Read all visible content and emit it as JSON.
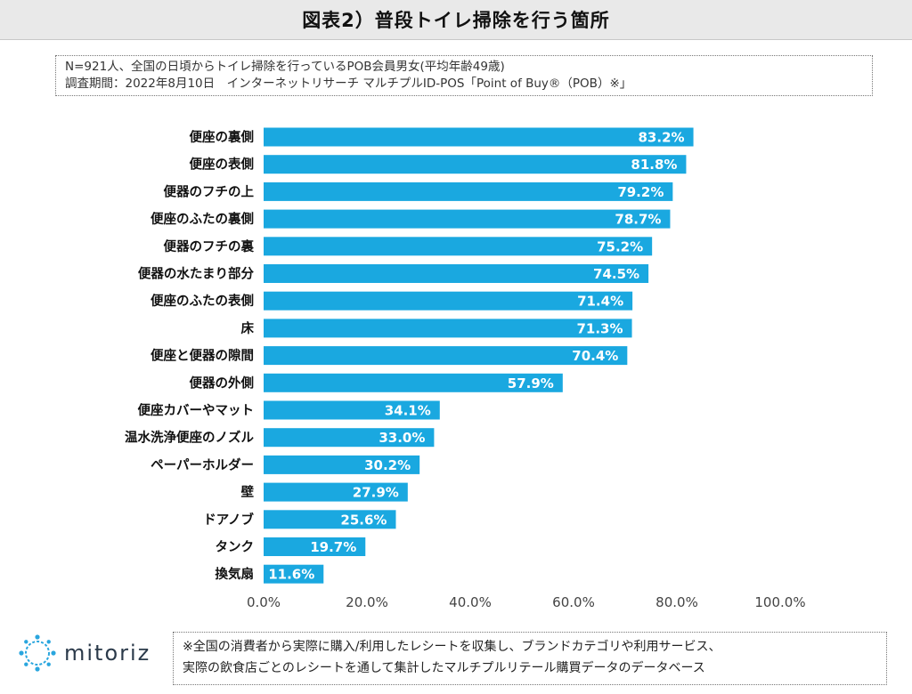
{
  "header": {
    "title": "図表2）普段トイレ掃除を行う箇所"
  },
  "notes": {
    "line1": "N=921人、全国の日頃からトイレ掃除を行っているPOB会員男女(平均年齢49歳)",
    "line2": "調査期間：2022年8月10日　インターネットリサーチ マルチプルID-POS「Point of Buy®（POB）※」"
  },
  "chart_data": {
    "type": "bar",
    "orientation": "horizontal",
    "categories": [
      "便座の裏側",
      "便座の表側",
      "便器のフチの上",
      "便座のふたの裏側",
      "便器のフチの裏",
      "便器の水たまり部分",
      "便座のふたの表側",
      "床",
      "便座と便器の隙間",
      "便器の外側",
      "便座カバーやマット",
      "温水洗浄便座のノズル",
      "ペーパーホルダー",
      "壁",
      "ドアノブ",
      "タンク",
      "換気扇"
    ],
    "values": [
      83.2,
      81.8,
      79.2,
      78.7,
      75.2,
      74.5,
      71.4,
      71.3,
      70.4,
      57.9,
      34.1,
      33.0,
      30.2,
      27.9,
      25.6,
      19.7,
      11.6
    ],
    "data_labels": [
      "83.2%",
      "81.8%",
      "79.2%",
      "78.7%",
      "75.2%",
      "74.5%",
      "71.4%",
      "71.3%",
      "70.4%",
      "57.9%",
      "34.1%",
      "33.0%",
      "30.2%",
      "27.9%",
      "25.6%",
      "19.7%",
      "11.6%"
    ],
    "x_ticks": [
      "0.0%",
      "20.0%",
      "40.0%",
      "60.0%",
      "80.0%",
      "100.0%"
    ],
    "xlim": [
      0,
      100
    ],
    "grid": false,
    "bar_color": "#1aa8e0",
    "label_color": "#ffffff"
  },
  "footer": {
    "logo_text": "mitoriz",
    "note_line1": "※全国の消費者から実際に購入/利用したレシートを収集し、ブランドカテゴリや利用サービス、",
    "note_line2": "実際の飲食店ごとのレシートを通して集計したマルチプルリテール購買データのデータベース"
  }
}
